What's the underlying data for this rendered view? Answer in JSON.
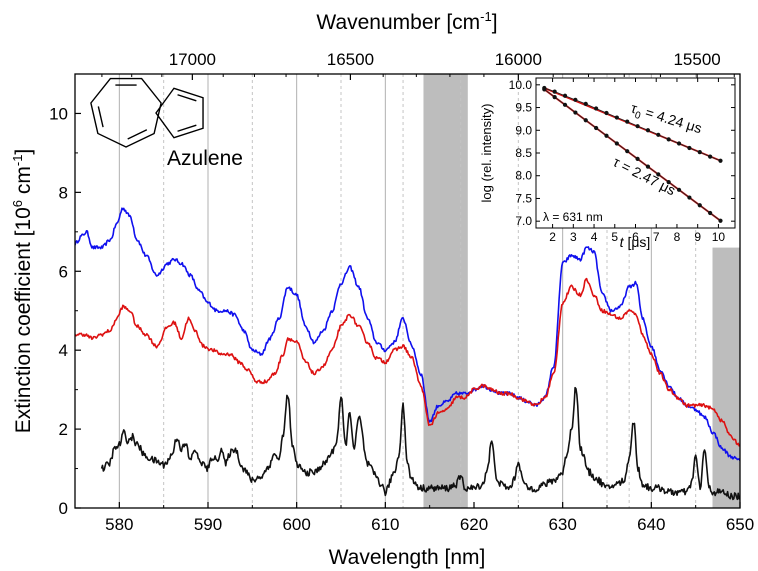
{
  "chart_data": {
    "type": "line",
    "xlabel": "Wavelength [nm]",
    "x2label_prefix": "Wavenumber [cm",
    "x2label_sup": "-1",
    "x2label_suffix": "]",
    "ylabel_prefix": "Extinction coefficient [10",
    "ylabel_sup1": "6",
    "ylabel_mid": " cm",
    "ylabel_sup2": "-1",
    "ylabel_suffix": "]",
    "xlim": [
      575,
      650
    ],
    "ylim": [
      0,
      11
    ],
    "xticks": [
      580,
      590,
      600,
      610,
      620,
      630,
      640,
      650
    ],
    "xtick_labels": [
      "580",
      "590",
      "600",
      "610",
      "620",
      "630",
      "640",
      "650"
    ],
    "yticks": [
      0,
      2,
      4,
      6,
      8,
      10
    ],
    "ytick_labels": [
      "0",
      "2",
      "4",
      "6",
      "8",
      "10"
    ],
    "top_ticks": [
      17000,
      16500,
      16000,
      15500
    ],
    "top_tick_labels": [
      "17000",
      "16500",
      "16000",
      "15500"
    ],
    "molecule_label": "Azulene",
    "shaded_regions": [
      {
        "x0": 614.3,
        "x1": 619.3,
        "y0": 0,
        "y1": 11
      },
      {
        "x0": 646.9,
        "x1": 650,
        "y0": 0,
        "y1": 6.6
      }
    ],
    "solid_lines": [
      580,
      590,
      600,
      610,
      630,
      640
    ],
    "dashed_lines": [
      585,
      595,
      605,
      612,
      618.5,
      625,
      635,
      637.5,
      645
    ],
    "series": [
      {
        "color": "#1010ee",
        "x": [
          575,
          575.8,
          576.3,
          577,
          578,
          579,
          579.7,
          580.4,
          581.2,
          582,
          583,
          584.2,
          585.5,
          586.2,
          587,
          588,
          589,
          590,
          591,
          592,
          593,
          594,
          595,
          596,
          597,
          598,
          599,
          600,
          601,
          602,
          603,
          604,
          605,
          606,
          607,
          608,
          609,
          610,
          611,
          612,
          613,
          614,
          615,
          616,
          617,
          618,
          619,
          620,
          621,
          622,
          623,
          624,
          625,
          626,
          627,
          628,
          629,
          630,
          631,
          632,
          632.7,
          633.5,
          634.5,
          635.5,
          636.5,
          637.5,
          638.3,
          639,
          640,
          641,
          642,
          643,
          644,
          645,
          646,
          647,
          648,
          649,
          650
        ],
        "y": [
          6.7,
          6.9,
          7.0,
          6.6,
          6.6,
          6.8,
          7.2,
          7.6,
          7.4,
          6.8,
          6.4,
          5.9,
          6.2,
          6.3,
          6.2,
          5.9,
          5.5,
          5.2,
          5.0,
          5.0,
          4.9,
          4.5,
          4.0,
          3.9,
          4.3,
          4.8,
          5.6,
          5.4,
          4.6,
          4.2,
          4.5,
          5.0,
          5.7,
          6.1,
          5.6,
          4.8,
          4.2,
          4.0,
          4.2,
          4.8,
          4.1,
          3.4,
          2.2,
          2.6,
          2.7,
          2.9,
          2.9,
          3.0,
          3.1,
          3.0,
          2.9,
          2.9,
          2.8,
          2.7,
          2.6,
          2.8,
          3.6,
          6.2,
          6.4,
          6.3,
          6.6,
          6.5,
          5.4,
          5.0,
          5.1,
          5.6,
          5.7,
          4.8,
          4.1,
          3.5,
          3.1,
          2.8,
          2.6,
          2.5,
          2.3,
          1.9,
          1.5,
          1.3,
          1.2
        ]
      },
      {
        "color": "#dd1111",
        "x": [
          575,
          576,
          577,
          578,
          579,
          579.7,
          580.4,
          581.2,
          582,
          583,
          584.2,
          585.5,
          586.2,
          587,
          587.8,
          588.5,
          589.5,
          590.5,
          591.5,
          592.5,
          593.5,
          594.5,
          595.5,
          596.5,
          597.5,
          598.5,
          599,
          600,
          601,
          602,
          603,
          604,
          605,
          606,
          607,
          608,
          609,
          610,
          611,
          612,
          613,
          614,
          615,
          616,
          617,
          618,
          619,
          620,
          621,
          622,
          623,
          624,
          625,
          626,
          627,
          628,
          629,
          630,
          631,
          632,
          632.7,
          633.5,
          634.5,
          635.5,
          636.5,
          637.5,
          638.3,
          639,
          640,
          641,
          642,
          643,
          644,
          645,
          646,
          647,
          648,
          649,
          650
        ],
        "y": [
          4.4,
          4.4,
          4.3,
          4.4,
          4.5,
          4.8,
          5.1,
          5.0,
          4.6,
          4.4,
          4.1,
          4.6,
          4.7,
          4.3,
          4.8,
          4.5,
          4.1,
          4.0,
          3.9,
          3.9,
          3.7,
          3.5,
          3.2,
          3.2,
          3.4,
          3.9,
          4.3,
          4.2,
          3.7,
          3.4,
          3.6,
          4.0,
          4.6,
          4.9,
          4.6,
          4.2,
          3.8,
          3.7,
          4.0,
          4.1,
          3.8,
          3.1,
          2.1,
          2.4,
          2.5,
          2.8,
          2.8,
          3.0,
          3.1,
          3.0,
          2.9,
          2.9,
          2.8,
          2.7,
          2.6,
          2.8,
          3.4,
          5.2,
          5.6,
          5.4,
          5.8,
          5.4,
          5.0,
          4.9,
          4.8,
          5.0,
          4.9,
          4.4,
          3.9,
          3.4,
          3.0,
          2.8,
          2.6,
          2.6,
          2.6,
          2.5,
          2.2,
          1.8,
          1.6
        ]
      },
      {
        "color": "#111111",
        "x": [
          578,
          578.8,
          579.5,
          580,
          580.5,
          581,
          581.5,
          582,
          583,
          584,
          585,
          585.5,
          586,
          586.5,
          587,
          587.5,
          588,
          588.5,
          589,
          590,
          590.5,
          591,
          591.5,
          592,
          592.5,
          593,
          594,
          595,
          596,
          597,
          597.5,
          598,
          598.5,
          599,
          599.5,
          600,
          601,
          602,
          603,
          604,
          604.5,
          605,
          605.5,
          606,
          606.5,
          607,
          608,
          609,
          609.5,
          610,
          611,
          611.5,
          612,
          612.5,
          613,
          614,
          615,
          616,
          617,
          618,
          618.5,
          619,
          620,
          621,
          621.5,
          622,
          622.5,
          623,
          624,
          624.5,
          625,
          625.5,
          626,
          627,
          628,
          629,
          630,
          630.5,
          631,
          631.5,
          632,
          633,
          634,
          635,
          636,
          637,
          637.5,
          638,
          638.5,
          639,
          640,
          641,
          642,
          643,
          644,
          644.5,
          645,
          645.5,
          646,
          646.5,
          647,
          648,
          649,
          650
        ],
        "y": [
          1.0,
          1.1,
          1.5,
          1.6,
          1.9,
          1.7,
          1.8,
          1.6,
          1.3,
          1.2,
          1.1,
          1.2,
          1.4,
          1.8,
          1.5,
          1.6,
          1.2,
          1.5,
          1.2,
          1.0,
          1.3,
          1.2,
          1.5,
          1.1,
          1.4,
          1.5,
          1.0,
          0.7,
          0.8,
          1.1,
          1.4,
          1.2,
          1.9,
          2.9,
          1.6,
          1.1,
          0.9,
          0.9,
          1.1,
          1.4,
          1.7,
          2.8,
          1.6,
          2.4,
          1.5,
          2.3,
          1.1,
          0.8,
          0.6,
          0.4,
          0.9,
          1.3,
          2.6,
          1.1,
          0.7,
          0.5,
          0.5,
          0.5,
          0.5,
          0.6,
          0.8,
          0.5,
          0.5,
          0.6,
          1.0,
          1.7,
          0.8,
          0.6,
          0.5,
          0.7,
          1.2,
          0.7,
          0.5,
          0.5,
          0.6,
          0.7,
          0.9,
          1.4,
          2.0,
          3.1,
          1.5,
          0.9,
          0.7,
          0.5,
          0.6,
          0.7,
          1.3,
          2.2,
          1.0,
          0.6,
          0.5,
          0.5,
          0.4,
          0.4,
          0.4,
          0.6,
          1.3,
          0.5,
          1.5,
          0.5,
          0.4,
          0.4,
          0.3,
          0.3
        ]
      }
    ],
    "inset": {
      "xlabel_t": "t",
      "xlabel_unit": " [μs]",
      "ylabel": "log (rel. intensity)",
      "xlim": [
        1.2,
        10.8
      ],
      "ylim": [
        6.85,
        10.15
      ],
      "xticks": [
        2,
        3,
        4,
        5,
        6,
        7,
        8,
        9,
        10
      ],
      "xtick_labels": [
        "2",
        "3",
        "4",
        "5",
        "6",
        "7",
        "8",
        "9",
        "10"
      ],
      "yticks": [
        7.0,
        7.5,
        8.0,
        8.5,
        9.0,
        9.5,
        10.0
      ],
      "ytick_labels": [
        "7.0",
        "7.5",
        "8.0",
        "8.5",
        "9.0",
        "9.5",
        "10.0"
      ],
      "tau0_label_prefix": "τ",
      "tau0_label_sub": "0",
      "tau0_label_value": " = 4.24 μs",
      "tau_label": "τ = 2.47 μs",
      "lambda_label": "λ = 631 nm",
      "series": [
        {
          "name": "τ0",
          "x": [
            1.6,
            2.1,
            2.6,
            3.1,
            3.6,
            4.1,
            4.6,
            5.1,
            5.6,
            6.1,
            6.6,
            7.1,
            7.6,
            8.1,
            8.6,
            9.1,
            9.6,
            10.1
          ],
          "y": [
            9.93,
            9.85,
            9.76,
            9.67,
            9.58,
            9.48,
            9.38,
            9.28,
            9.19,
            9.09,
            9.0,
            8.9,
            8.8,
            8.71,
            8.61,
            8.52,
            8.42,
            8.33
          ]
        },
        {
          "name": "τ",
          "x": [
            1.6,
            2.1,
            2.6,
            3.1,
            3.6,
            4.1,
            4.6,
            5.1,
            5.6,
            6.1,
            6.6,
            7.1,
            7.6,
            8.1,
            8.6,
            9.1,
            9.6,
            10.1
          ],
          "y": [
            9.9,
            9.73,
            9.56,
            9.39,
            9.22,
            9.05,
            8.88,
            8.71,
            8.54,
            8.37,
            8.2,
            8.03,
            7.86,
            7.69,
            7.52,
            7.35,
            7.18,
            7.01
          ]
        }
      ]
    }
  }
}
